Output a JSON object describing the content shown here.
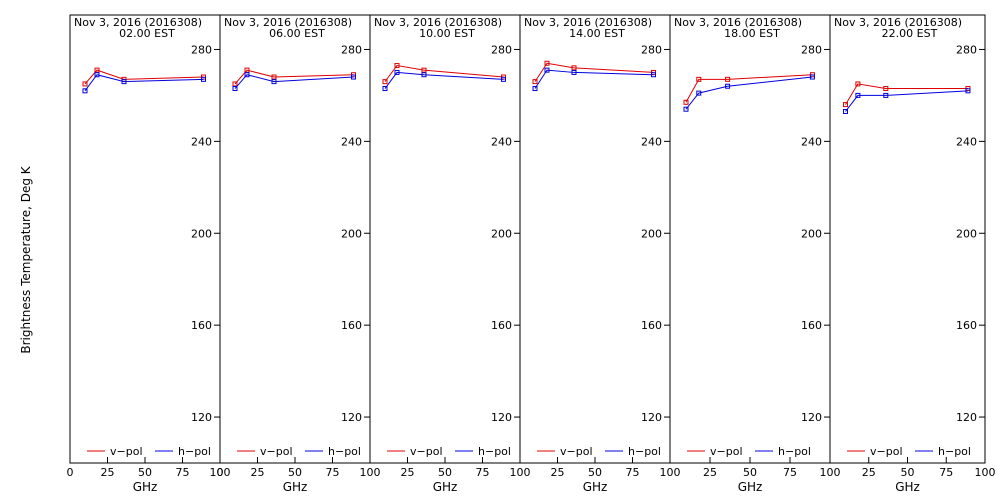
{
  "ylabel": "Brightness Temperature, Deg K",
  "xlabel": "GHz",
  "date_line": "Nov  3, 2016 (2016308)",
  "legend": {
    "v": "v−pol",
    "h": "h−pol"
  },
  "colors": {
    "v": "#e00000",
    "h": "#0000e0",
    "axis": "#000000"
  },
  "xlim": [
    0,
    100
  ],
  "ylim": [
    100,
    295
  ],
  "x_ticks": [
    0,
    25,
    50,
    75,
    100
  ],
  "x_tick_labels_by_panel": [
    [
      "0",
      "25",
      "50",
      "75",
      "100"
    ],
    [
      "0",
      "25",
      "50",
      "75",
      "100"
    ],
    [
      "25",
      "50",
      "75",
      "100"
    ],
    [
      "25",
      "50",
      "75",
      "100"
    ],
    [
      "25",
      "50",
      "75",
      "100"
    ],
    [
      "25",
      "50",
      "75",
      "100"
    ]
  ],
  "y_ticks": [
    "120",
    "160",
    "200",
    "240",
    "280"
  ],
  "chart_data": [
    {
      "type": "line",
      "title": "Nov  3, 2016 (2016308)",
      "time": "02.00 EST",
      "x": [
        10,
        18,
        36,
        89
      ],
      "series": [
        {
          "name": "v−pol",
          "values": [
            265,
            271,
            267,
            268
          ]
        },
        {
          "name": "h−pol",
          "values": [
            262,
            269,
            266,
            267
          ]
        }
      ]
    },
    {
      "type": "line",
      "title": "Nov  3, 2016 (2016308)",
      "time": "06.00 EST",
      "x": [
        10,
        18,
        36,
        89
      ],
      "series": [
        {
          "name": "v−pol",
          "values": [
            265,
            271,
            268,
            269
          ]
        },
        {
          "name": "h−pol",
          "values": [
            263,
            269,
            266,
            268
          ]
        }
      ]
    },
    {
      "type": "line",
      "title": "Nov  3, 2016 (2016308)",
      "time": "10.00 EST",
      "x": [
        10,
        18,
        36,
        89
      ],
      "series": [
        {
          "name": "v−pol",
          "values": [
            266,
            273,
            271,
            268
          ]
        },
        {
          "name": "h−pol",
          "values": [
            263,
            270,
            269,
            267
          ]
        }
      ]
    },
    {
      "type": "line",
      "title": "Nov  3, 2016 (2016308)",
      "time": "14.00 EST",
      "x": [
        10,
        18,
        36,
        89
      ],
      "series": [
        {
          "name": "v−pol",
          "values": [
            266,
            274,
            272,
            270
          ]
        },
        {
          "name": "h−pol",
          "values": [
            263,
            271,
            270,
            269
          ]
        }
      ]
    },
    {
      "type": "line",
      "title": "Nov  3, 2016 (2016308)",
      "time": "18.00 EST",
      "x": [
        10,
        18,
        36,
        89
      ],
      "series": [
        {
          "name": "v−pol",
          "values": [
            257,
            267,
            267,
            269
          ]
        },
        {
          "name": "h−pol",
          "values": [
            254,
            261,
            264,
            268
          ]
        }
      ]
    },
    {
      "type": "line",
      "title": "Nov  3, 2016 (2016308)",
      "time": "22.00 EST",
      "x": [
        10,
        18,
        36,
        89
      ],
      "series": [
        {
          "name": "v−pol",
          "values": [
            256,
            265,
            263,
            263
          ]
        },
        {
          "name": "h−pol",
          "values": [
            253,
            260,
            260,
            262
          ]
        }
      ]
    }
  ]
}
